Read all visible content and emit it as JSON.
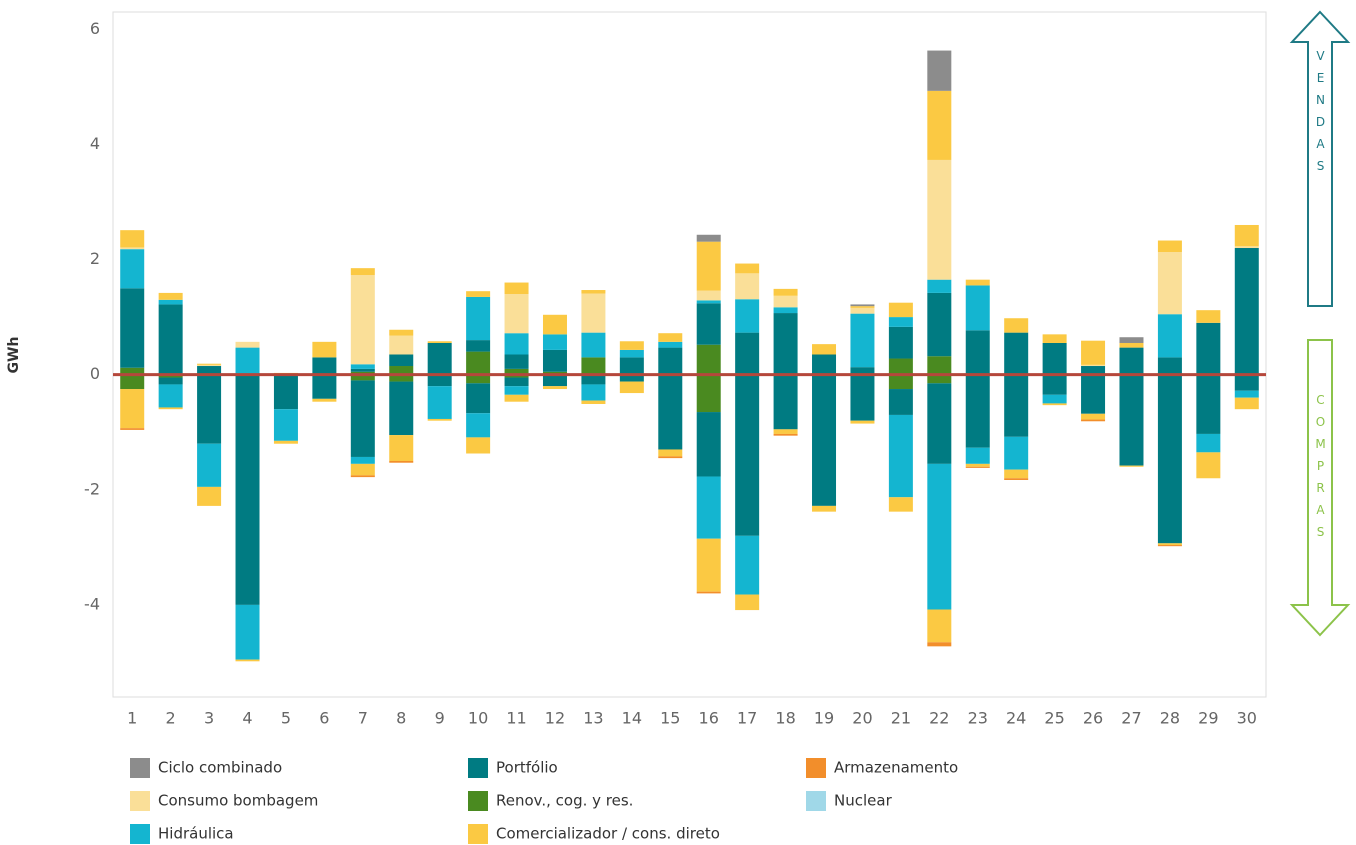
{
  "chart_data": {
    "type": "diverging_stacked_bar",
    "y_label": "GWh",
    "annotations": {
      "sales": "VENDAS",
      "purchases": "COMPRAS"
    },
    "categories": [
      "1",
      "2",
      "3",
      "4",
      "5",
      "6",
      "7",
      "8",
      "9",
      "10",
      "11",
      "12",
      "13",
      "14",
      "15",
      "16",
      "17",
      "18",
      "19",
      "20",
      "21",
      "22",
      "23",
      "24",
      "25",
      "26",
      "27",
      "28",
      "29",
      "30"
    ],
    "ylim": [
      -5.6,
      6.3
    ],
    "yticks": [
      -4,
      -2,
      0,
      2,
      4,
      6
    ],
    "grid": false,
    "reference_line": {
      "value": 0,
      "color": "#b5473b"
    },
    "series": [
      {
        "name": "Renov., cog. y res.",
        "color": "#4a8a20",
        "values": [
          0.12,
          0,
          0,
          0,
          0,
          0,
          0.05,
          0.15,
          0,
          0.4,
          0.1,
          0.05,
          0.3,
          0,
          0,
          0.52,
          0,
          0,
          0,
          0,
          0.28,
          0.32,
          0,
          0,
          0,
          0,
          0,
          0,
          0,
          0
        ],
        "neg_values": [
          -0.25,
          -0.05,
          0,
          0,
          0,
          0,
          -0.1,
          -0.12,
          0,
          -0.15,
          -0.05,
          0,
          0,
          0,
          0,
          -0.65,
          0,
          0,
          0,
          0,
          -0.25,
          -0.15,
          0,
          0,
          0,
          0,
          0,
          0,
          0,
          0
        ]
      },
      {
        "name": "Portfólio",
        "color": "#007b82",
        "values": [
          1.38,
          1.22,
          0.15,
          0.02,
          0,
          0.3,
          0.05,
          0.2,
          0.55,
          0.2,
          0.25,
          0.38,
          0,
          0.3,
          0.47,
          0.72,
          0.73,
          1.07,
          0.35,
          0.13,
          0.55,
          1.1,
          0.77,
          0.73,
          0.55,
          0.15,
          0.47,
          0.3,
          0.9,
          2.2
        ],
        "neg_values": [
          0,
          -0.12,
          -1.2,
          -4.0,
          -0.6,
          -0.42,
          -1.33,
          -0.93,
          -0.2,
          -0.52,
          -0.15,
          -0.2,
          -0.17,
          -0.12,
          -1.3,
          -1.12,
          -2.8,
          -0.95,
          -2.28,
          -0.8,
          -0.45,
          -1.4,
          -1.27,
          -1.08,
          -0.35,
          -0.68,
          -1.58,
          -2.93,
          -1.03,
          -0.28
        ]
      },
      {
        "name": "Hidráulica",
        "color": "#14b5d0",
        "values": [
          0.68,
          0.08,
          0,
          0.45,
          0,
          0,
          0.08,
          0,
          0,
          0.75,
          0.37,
          0.27,
          0.43,
          0.13,
          0.1,
          0.05,
          0.58,
          0.1,
          0,
          0.93,
          0.17,
          0.23,
          0.78,
          0,
          0,
          0,
          0,
          0.75,
          0,
          0
        ],
        "neg_values": [
          0,
          -0.4,
          -0.75,
          -0.95,
          -0.55,
          0,
          -0.12,
          0,
          -0.57,
          -0.42,
          -0.15,
          0,
          -0.28,
          0,
          0,
          -1.08,
          -1.02,
          0,
          0,
          0,
          -1.43,
          -2.53,
          -0.28,
          -0.57,
          -0.15,
          0,
          0,
          0,
          -0.32,
          -0.12
        ]
      },
      {
        "name": "Nuclear",
        "color": "#a0d8e8",
        "values": [
          0,
          0,
          0,
          0,
          0,
          0,
          0,
          0,
          0,
          0,
          0,
          0,
          0,
          0,
          0,
          0,
          0,
          0,
          0,
          0,
          0,
          0,
          0,
          0,
          0,
          0,
          0,
          0,
          0,
          0
        ],
        "neg_values": [
          0,
          0,
          0,
          0,
          0,
          0,
          0,
          0,
          0,
          0,
          0,
          0,
          0,
          0,
          0,
          0,
          0,
          0,
          0,
          0,
          0,
          0,
          0,
          0,
          0,
          0,
          0,
          0,
          0,
          0
        ]
      },
      {
        "name": "Consumo bombagem",
        "color": "#fadf98",
        "values": [
          0.03,
          0,
          0.02,
          0.1,
          0,
          0,
          1.55,
          0.33,
          0,
          0,
          0.68,
          0,
          0.68,
          0,
          0,
          0.17,
          0.45,
          0.2,
          0,
          0.1,
          0,
          2.08,
          0,
          0,
          0,
          0.02,
          0,
          1.08,
          0,
          0.03
        ],
        "neg_values": [
          0,
          0,
          0,
          0,
          0,
          0,
          0,
          0,
          0,
          0,
          0,
          0,
          0,
          0,
          0,
          0,
          0,
          0,
          0,
          0,
          0,
          0,
          0,
          0,
          0,
          0,
          0,
          0,
          0,
          0
        ]
      },
      {
        "name": "Comercializador / cons. direto",
        "color": "#fbc943",
        "values": [
          0.3,
          0.12,
          0.02,
          0,
          0.03,
          0.27,
          0.12,
          0.1,
          0.03,
          0.1,
          0.2,
          0.34,
          0.06,
          0.15,
          0.15,
          0.85,
          0.17,
          0.12,
          0.18,
          0.03,
          0.25,
          1.2,
          0.1,
          0.25,
          0.15,
          0.42,
          0.08,
          0.2,
          0.22,
          0.37
        ],
        "neg_values": [
          -0.68,
          -0.03,
          -0.33,
          -0.03,
          -0.05,
          -0.05,
          -0.2,
          -0.45,
          -0.03,
          -0.28,
          -0.12,
          -0.05,
          -0.06,
          -0.2,
          -0.12,
          -0.92,
          -0.27,
          -0.08,
          -0.1,
          -0.05,
          -0.25,
          -0.57,
          -0.05,
          -0.15,
          -0.03,
          -0.1,
          -0.02,
          -0.03,
          -0.45,
          -0.2
        ]
      },
      {
        "name": "Armazenamento",
        "color": "#f28e2b",
        "values": [
          0,
          0,
          0,
          0,
          0,
          0,
          0,
          0,
          0,
          0,
          0,
          0,
          0,
          0,
          0,
          0,
          0,
          0,
          0,
          0,
          0,
          0,
          0,
          0,
          0,
          0,
          0,
          0,
          0,
          0
        ],
        "neg_values": [
          -0.03,
          0,
          0,
          0,
          0,
          0,
          -0.03,
          -0.03,
          0,
          0,
          0,
          0,
          0,
          0,
          -0.03,
          -0.03,
          0,
          -0.03,
          0,
          0,
          0,
          -0.07,
          -0.02,
          -0.03,
          0,
          -0.03,
          0,
          -0.02,
          0,
          0
        ]
      },
      {
        "name": "Ciclo combinado",
        "color": "#8c8c8c",
        "values": [
          0,
          0,
          0,
          0,
          0,
          0,
          0,
          0,
          0,
          0,
          0,
          0,
          0,
          0,
          0,
          0.12,
          0,
          0,
          0,
          0.03,
          0,
          0.7,
          0,
          0,
          0,
          0,
          0.1,
          0,
          0,
          0
        ],
        "neg_values": [
          0,
          0,
          0,
          0,
          0,
          0,
          0,
          0,
          0,
          0,
          0,
          0,
          0,
          0,
          0,
          0,
          0,
          0,
          0,
          0,
          0,
          0,
          0,
          0,
          0,
          0,
          0,
          0,
          0,
          0
        ]
      }
    ]
  }
}
